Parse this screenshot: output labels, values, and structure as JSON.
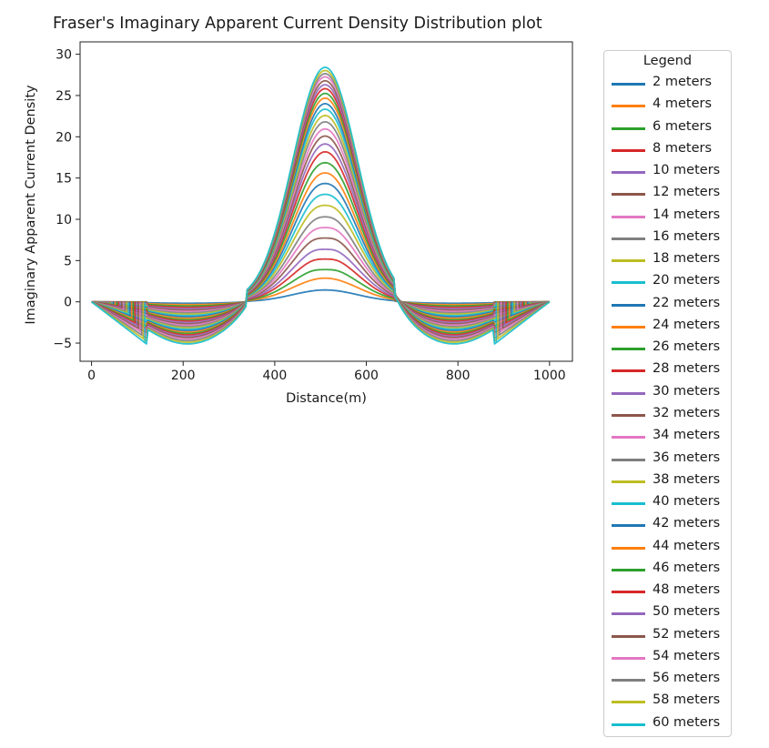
{
  "chart_data": {
    "type": "line",
    "title": "Fraser's Imaginary Apparent Current Density Distribution plot",
    "xlabel": "Distance(m)",
    "ylabel": "Imaginary Apparent Current Density",
    "xlim": [
      -25,
      1050
    ],
    "ylim": [
      -7.2,
      31.5
    ],
    "xticks": [
      0,
      200,
      400,
      600,
      800,
      1000
    ],
    "yticks": [
      -5,
      0,
      5,
      10,
      15,
      20,
      25,
      30
    ],
    "grid": false,
    "legend_title": "Legend",
    "legend_position": "outside-right",
    "x": [
      0,
      100,
      120,
      200,
      210,
      300,
      330,
      380,
      420,
      460,
      500,
      510,
      520,
      560,
      600,
      640,
      680,
      710,
      790,
      800,
      880,
      900,
      1000
    ],
    "series": [
      {
        "name": "2 meters",
        "peak": 1.5,
        "trough": -0.17,
        "dip": 1.0
      },
      {
        "name": "4 meters",
        "peak": 3.0,
        "trough": -0.34,
        "dip": 1.0
      },
      {
        "name": "6 meters",
        "peak": 4.3,
        "trough": -0.5,
        "dip": 0.95
      },
      {
        "name": "8 meters",
        "peak": 5.7,
        "trough": -0.67,
        "dip": 0.95
      },
      {
        "name": "10 meters",
        "peak": 7.0,
        "trough": -0.83,
        "dip": 0.95
      },
      {
        "name": "12 meters",
        "peak": 8.5,
        "trough": -1.0,
        "dip": 0.95
      },
      {
        "name": "14 meters",
        "peak": 9.8,
        "trough": -1.17,
        "dip": 0.96
      },
      {
        "name": "16 meters",
        "peak": 11.1,
        "trough": -1.33,
        "dip": 0.97
      },
      {
        "name": "18 meters",
        "peak": 12.6,
        "trough": -1.5,
        "dip": 0.97
      },
      {
        "name": "20 meters",
        "peak": 13.9,
        "trough": -1.67,
        "dip": 0.98
      },
      {
        "name": "22 meters",
        "peak": 15.3,
        "trough": -1.83,
        "dip": 0.98
      },
      {
        "name": "24 meters",
        "peak": 16.5,
        "trough": -2.0,
        "dip": 0.99
      },
      {
        "name": "26 meters",
        "peak": 17.8,
        "trough": -2.17,
        "dip": 0.99
      },
      {
        "name": "28 meters",
        "peak": 19.0,
        "trough": -2.33,
        "dip": 1.0
      },
      {
        "name": "30 meters",
        "peak": 20.0,
        "trough": -2.5,
        "dip": 1.0
      },
      {
        "name": "32 meters",
        "peak": 21.0,
        "trough": -2.67,
        "dip": 1.0
      },
      {
        "name": "34 meters",
        "peak": 21.9,
        "trough": -2.83,
        "dip": 1.0
      },
      {
        "name": "36 meters",
        "peak": 22.8,
        "trough": -3.0,
        "dip": 1.0
      },
      {
        "name": "38 meters",
        "peak": 23.6,
        "trough": -3.17,
        "dip": 1.0
      },
      {
        "name": "40 meters",
        "peak": 24.4,
        "trough": -3.33,
        "dip": 1.0
      },
      {
        "name": "42 meters",
        "peak": 25.1,
        "trough": -3.5,
        "dip": 1.0
      },
      {
        "name": "44 meters",
        "peak": 25.8,
        "trough": -3.67,
        "dip": 1.0
      },
      {
        "name": "46 meters",
        "peak": 26.4,
        "trough": -3.83,
        "dip": 1.0
      },
      {
        "name": "48 meters",
        "peak": 27.0,
        "trough": -4.0,
        "dip": 1.0
      },
      {
        "name": "50 meters",
        "peak": 27.5,
        "trough": -4.17,
        "dip": 1.0
      },
      {
        "name": "52 meters",
        "peak": 28.0,
        "trough": -4.33,
        "dip": 1.0
      },
      {
        "name": "54 meters",
        "peak": 28.5,
        "trough": -4.5,
        "dip": 1.0
      },
      {
        "name": "56 meters",
        "peak": 28.9,
        "trough": -4.7,
        "dip": 1.0
      },
      {
        "name": "58 meters",
        "peak": 29.3,
        "trough": -4.9,
        "dip": 1.0
      },
      {
        "name": "60 meters",
        "peak": 29.7,
        "trough": -5.1,
        "dip": 1.0
      }
    ],
    "colors": [
      "#1f77b4",
      "#ff7f0e",
      "#2ca02c",
      "#d62728",
      "#9467bd",
      "#8c564b",
      "#e377c2",
      "#7f7f7f",
      "#bcbd22",
      "#17becf"
    ]
  }
}
